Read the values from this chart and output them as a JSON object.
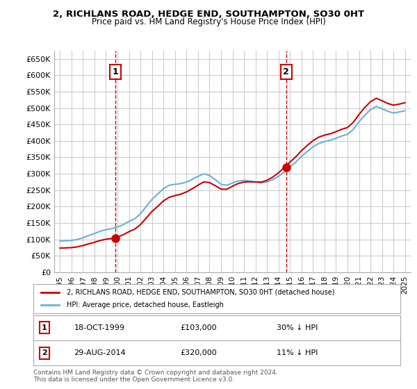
{
  "title": "2, RICHLANS ROAD, HEDGE END, SOUTHAMPTON, SO30 0HT",
  "subtitle": "Price paid vs. HM Land Registry's House Price Index (HPI)",
  "legend_line1": "2, RICHLANS ROAD, HEDGE END, SOUTHAMPTON, SO30 0HT (detached house)",
  "legend_line2": "HPI: Average price, detached house, Eastleigh",
  "sale1_date": "18-OCT-1999",
  "sale1_price": 103000,
  "sale1_label": "30% ↓ HPI",
  "sale2_date": "29-AUG-2014",
  "sale2_price": 320000,
  "sale2_label": "11% ↓ HPI",
  "footer": "Contains HM Land Registry data © Crown copyright and database right 2024.\nThis data is licensed under the Open Government Licence v3.0.",
  "hpi_color": "#6ab0d4",
  "price_color": "#cc0000",
  "sale_marker_color": "#cc0000",
  "vline_color": "#cc0000",
  "grid_color": "#cccccc",
  "bg_color": "#ffffff",
  "ylim": [
    0,
    675000
  ],
  "yticks": [
    0,
    50000,
    100000,
    150000,
    200000,
    250000,
    300000,
    350000,
    400000,
    450000,
    500000,
    550000,
    600000,
    650000
  ],
  "xlim_start": 1994.5,
  "xlim_end": 2025.5
}
